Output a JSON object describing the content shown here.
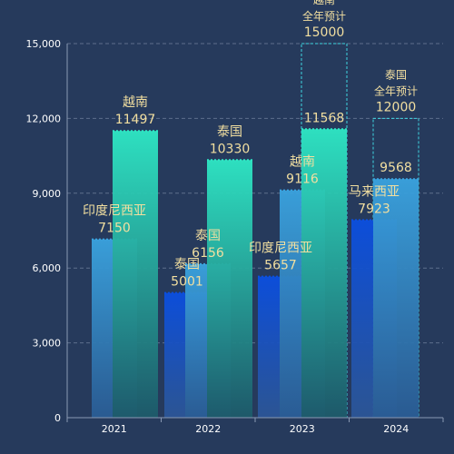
{
  "chart_data": {
    "type": "bar",
    "categories": [
      "2021",
      "2022",
      "2023",
      "2024"
    ],
    "ylim": [
      0,
      15000
    ],
    "yticks": [
      "0",
      "3,000",
      "6,000",
      "9,000",
      "12,000",
      "15,000"
    ],
    "yticks_values": [
      0,
      3000,
      6000,
      9000,
      12000,
      15000
    ],
    "grid": true,
    "legend": "none",
    "bars": [
      {
        "category": "2021",
        "slot": 0,
        "style": "blue-light",
        "value": 7150,
        "label_lines": [
          "印度尼西亚",
          "7150"
        ]
      },
      {
        "category": "2021",
        "slot": 1,
        "style": "teal",
        "value": 11497,
        "label_lines": [
          "越南",
          "11497"
        ]
      },
      {
        "category": "2022",
        "slot": 0,
        "style": "blue-dark",
        "value": 5001,
        "label_lines": [
          "泰国",
          "5001"
        ]
      },
      {
        "category": "2022",
        "slot": 1,
        "style": "blue-light",
        "value": 6156,
        "label_lines": [
          "泰国",
          "6156"
        ]
      },
      {
        "category": "2022",
        "slot": 2,
        "style": "teal",
        "value": 10330,
        "label_lines": [
          "泰国",
          "10330"
        ]
      },
      {
        "category": "2023",
        "slot": 0,
        "style": "blue-dark",
        "value": 5657,
        "label_lines": [
          "印度尼西亚",
          "5657"
        ]
      },
      {
        "category": "2023",
        "slot": 1,
        "style": "blue-light",
        "value": 9116,
        "label_lines": [
          "越南",
          "9116"
        ]
      },
      {
        "category": "2023",
        "slot": 2,
        "style": "teal",
        "value": 11568,
        "label_lines": [
          "11568"
        ]
      },
      {
        "category": "2024",
        "slot": 0,
        "style": "blue-dark",
        "value": 7923,
        "label_lines": [
          "马来西亚",
          "7923"
        ]
      },
      {
        "category": "2024",
        "slot": 1,
        "style": "blue-light",
        "value": 9568,
        "label_lines": [
          "9568"
        ]
      }
    ],
    "forecasts": [
      {
        "category": "2023",
        "slot": 2,
        "value": 15000,
        "label_lines": [
          "越南",
          "全年预计",
          "15000"
        ]
      },
      {
        "category": "2024",
        "slot": 1,
        "value": 12000,
        "label_lines": [
          "泰国",
          "全年预计",
          "12000"
        ]
      }
    ]
  },
  "colors": {
    "background": "#263a5c",
    "grid": "#5d6f8c",
    "axis": "#8a99b3",
    "label": "#f2dfa0",
    "forecast_border": "#3fd4e0",
    "teal_top": "#2ee8c5",
    "teal_bottom": "#1d5a6a",
    "blue_light_top": "#3aa3df",
    "blue_light_bottom": "#2a5c94",
    "blue_dark_top": "#0b4fe0",
    "blue_dark_bottom": "#2c5696"
  }
}
